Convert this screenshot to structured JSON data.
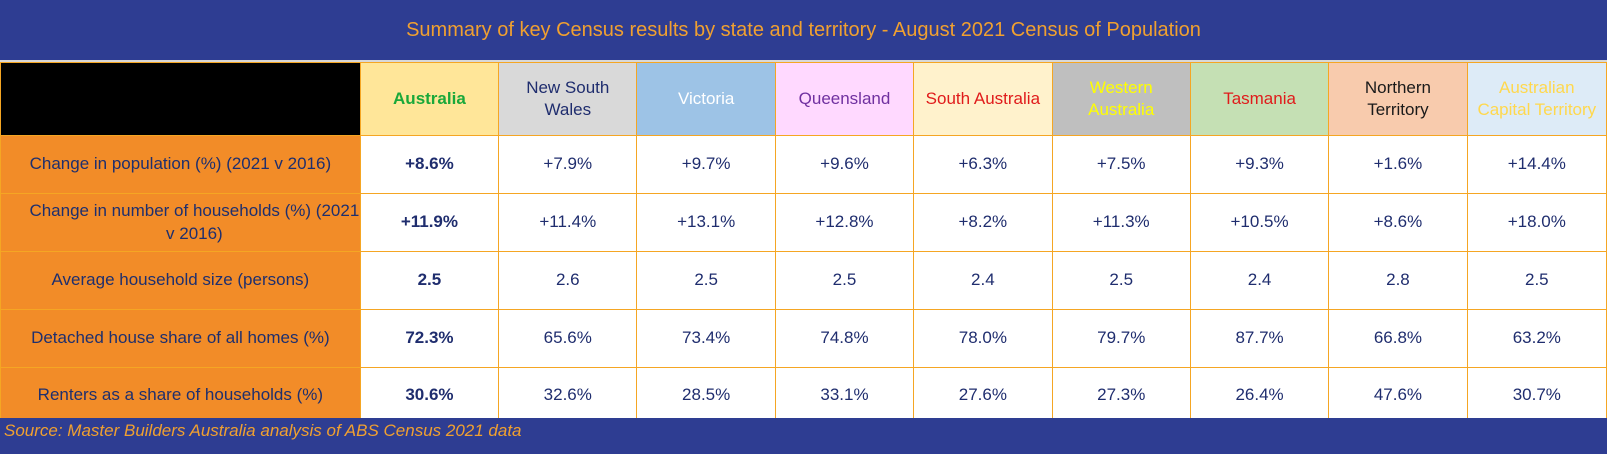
{
  "chart_data": {
    "type": "table",
    "title": "Summary of key Census results by state and territory - August 2021 Census of Population",
    "columns": [
      {
        "name": "Australia",
        "bg": "#ffe699",
        "fg": "#1aa83a",
        "bold": true
      },
      {
        "name": "New South Wales",
        "bg": "#d9d9d9",
        "fg": "#1f2d6e",
        "bold": false
      },
      {
        "name": "Victoria",
        "bg": "#9dc3e6",
        "fg": "#ffffff",
        "bold": false
      },
      {
        "name": "Queensland",
        "bg": "#ffd9ff",
        "fg": "#7030a0",
        "bold": false
      },
      {
        "name": "South Australia",
        "bg": "#fff2cc",
        "fg": "#e01b1b",
        "bold": false
      },
      {
        "name": "Western Australia",
        "bg": "#bfbfbf",
        "fg": "#ffff00",
        "bold": false
      },
      {
        "name": "Tasmania",
        "bg": "#c5e0b4",
        "fg": "#e01b1b",
        "bold": false
      },
      {
        "name": "Northern Territory",
        "bg": "#f8cbad",
        "fg": "#1a1a1a",
        "bold": false
      },
      {
        "name": "Australian Capital Territory",
        "bg": "#ddebf7",
        "fg": "#ffd84d",
        "bold": false
      }
    ],
    "rows": [
      {
        "label": "Change in population (%) (2021 v 2016)",
        "values": [
          "+8.6%",
          "+7.9%",
          "+9.7%",
          "+9.6%",
          "+6.3%",
          "+7.5%",
          "+9.3%",
          "+1.6%",
          "+14.4%"
        ]
      },
      {
        "label": "Change in number of households (%) (2021 v 2016)",
        "values": [
          "+11.9%",
          "+11.4%",
          "+13.1%",
          "+12.8%",
          "+8.2%",
          "+11.3%",
          "+10.5%",
          "+8.6%",
          "+18.0%"
        ]
      },
      {
        "label": "Average household size (persons)",
        "values": [
          "2.5",
          "2.6",
          "2.5",
          "2.5",
          "2.4",
          "2.5",
          "2.4",
          "2.8",
          "2.5"
        ]
      },
      {
        "label": "Detached house share of all homes (%)",
        "values": [
          "72.3%",
          "65.6%",
          "73.4%",
          "74.8%",
          "78.0%",
          "79.7%",
          "87.7%",
          "66.8%",
          "63.2%"
        ]
      },
      {
        "label": "Renters as a share of households (%)",
        "values": [
          "30.6%",
          "32.6%",
          "28.5%",
          "33.1%",
          "27.6%",
          "27.3%",
          "26.4%",
          "47.6%",
          "30.7%"
        ]
      }
    ]
  },
  "source": "Source: Master Builders Australia analysis of ABS Census 2021 data"
}
